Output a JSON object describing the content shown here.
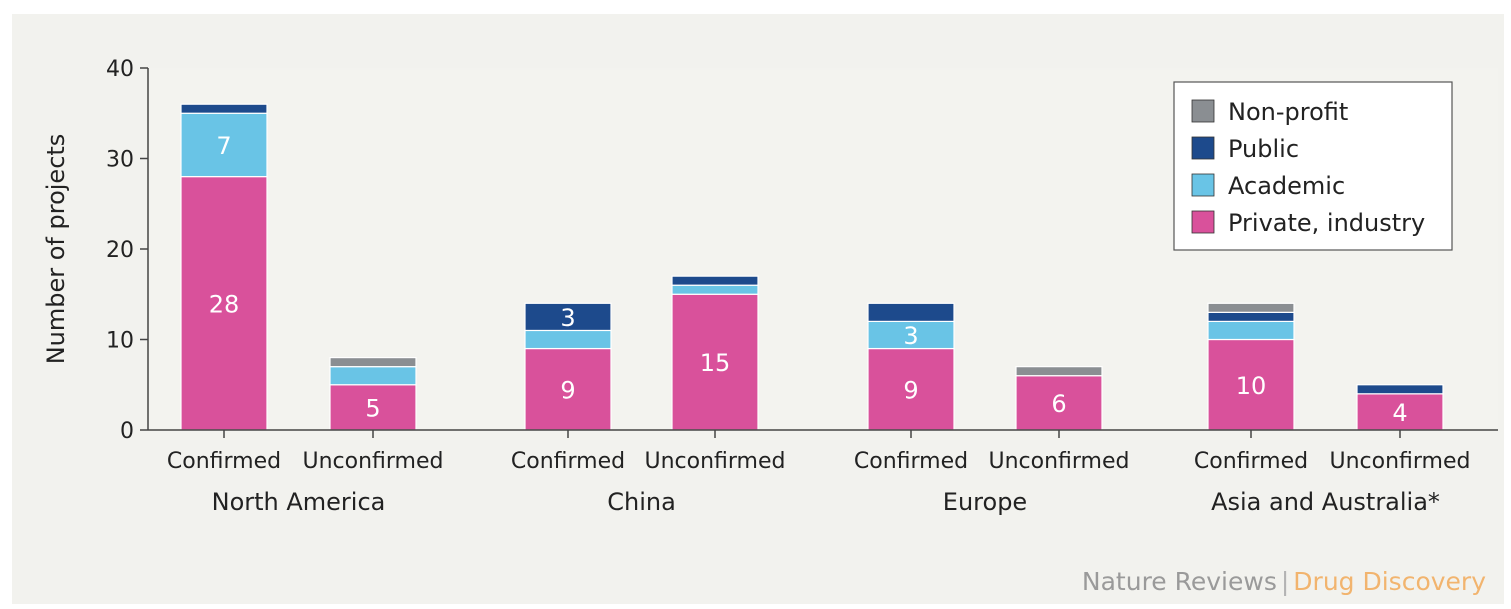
{
  "chart_data": {
    "type": "bar",
    "stacked": true,
    "ylabel": "Number of projects",
    "ylim": [
      0,
      40
    ],
    "yticks": [
      0,
      10,
      20,
      30,
      40
    ],
    "grid": false,
    "legend_position": "top-right",
    "groups": [
      {
        "name": "North America",
        "categories": [
          "Confirmed",
          "Unconfirmed"
        ]
      },
      {
        "name": "China",
        "categories": [
          "Confirmed",
          "Unconfirmed"
        ]
      },
      {
        "name": "Europe",
        "categories": [
          "Confirmed",
          "Unconfirmed"
        ]
      },
      {
        "name": "Asia and Australia*",
        "categories": [
          "Confirmed",
          "Unconfirmed"
        ]
      }
    ],
    "series": [
      {
        "name": "Private, industry",
        "color": "#d9519b",
        "values": [
          28,
          5,
          9,
          15,
          9,
          6,
          10,
          4
        ],
        "labels": [
          "28",
          "5",
          "9",
          "15",
          "9",
          "6",
          "10",
          "4"
        ]
      },
      {
        "name": "Academic",
        "color": "#69c4e6",
        "values": [
          7,
          2,
          2,
          1,
          3,
          0,
          2,
          0
        ],
        "labels": [
          "7",
          "",
          "",
          "",
          "3",
          "",
          "",
          ""
        ]
      },
      {
        "name": "Public",
        "color": "#1d4a8c",
        "values": [
          1,
          0,
          3,
          1,
          2,
          0,
          1,
          1
        ],
        "labels": [
          "",
          "",
          "3",
          "",
          "",
          "",
          "",
          ""
        ]
      },
      {
        "name": "Non-profit",
        "color": "#8a8e92",
        "values": [
          0,
          1,
          0,
          0,
          0,
          1,
          1,
          0
        ],
        "labels": [
          "",
          "",
          "",
          "",
          "",
          "",
          "",
          ""
        ]
      }
    ]
  },
  "footer": {
    "journal": "Nature Reviews",
    "separator": "|",
    "brand": "Drug Discovery"
  }
}
